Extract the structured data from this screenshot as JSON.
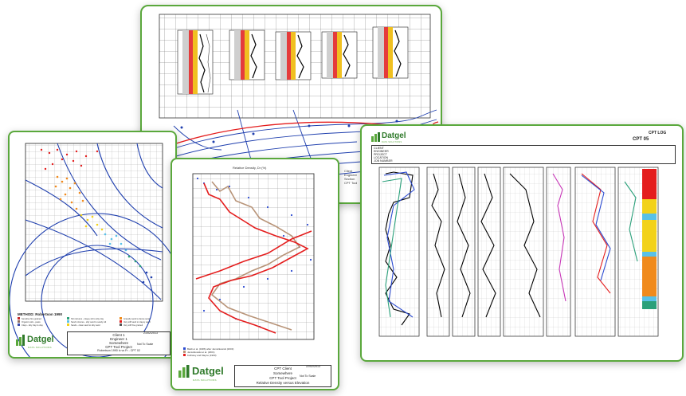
{
  "brand": {
    "name": "Datgel",
    "tagline": "DATA SOLUTIONS",
    "colors": {
      "accent": "#5aa83c",
      "dark_green": "#2f7a2a",
      "map_blue": "#1f3fae",
      "data_red": "#e41d1d"
    }
  },
  "sheet_map": {
    "profile_count": 5,
    "side_note": [
      "Client",
      "Engineer",
      "Section",
      "CPT Tool"
    ]
  },
  "sheet_robertson": {
    "legend_title": "METHOD: Robertson 1990",
    "legend_items": [
      "Sensitive fine grained",
      "Organic soils - peats",
      "Clays - silty clay to clay",
      "Silt mixtures - clayey silt to silty clay",
      "Sand mixtures - silty sand to sandy silt",
      "Sands - clean sand to silty sand",
      "Gravelly sand to dense sand",
      "Very stiff sand to clayey sand",
      "Very stiff fine grained"
    ],
    "title_block": [
      "Client 1",
      "Engineer 1",
      "Somewhere",
      "CPT Tool Project",
      "Robertson 1990 Ic vs Fr - CPT 02"
    ],
    "date": "21/02/2013",
    "status": "Not To Scale"
  },
  "sheet_density": {
    "chart_title": "Relative Density, Dr (%)",
    "legend_items": [
      "Baldi et al. (1986) after Jamiolkowski (2003)",
      "Jamiolkowski et al. (2001)",
      "Kulhawy and Mayne (1990)"
    ],
    "title_block": [
      "CPT Client",
      "Somewhere",
      "CPT Tool Project",
      "Relative Density versus Elevation"
    ],
    "date": "22/02/2013",
    "status": "Not To Scale"
  },
  "sheet_log": {
    "header_title": "CPT LOG",
    "log_id": "CPT 05",
    "header_fields": [
      "CLIENT",
      "ENGINEER",
      "PROJECT",
      "LOCATION",
      "JOB NUMBER"
    ],
    "track_count": 8
  }
}
